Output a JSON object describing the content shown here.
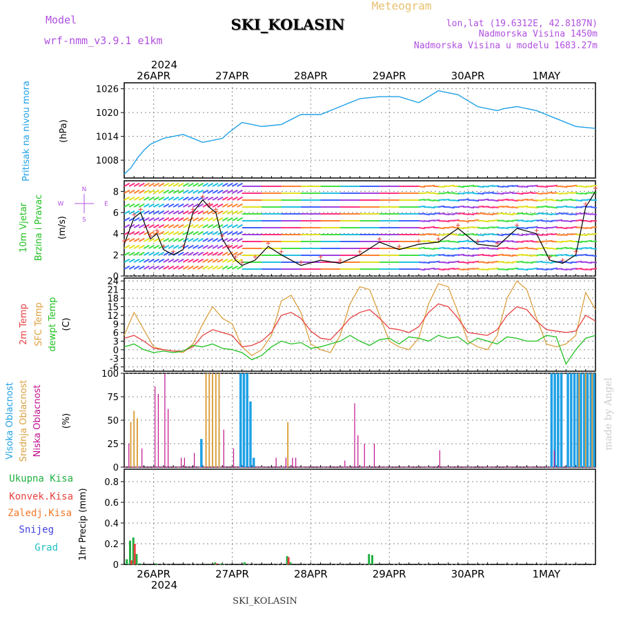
{
  "header": {
    "model_label": "Model",
    "model_value": "wrf-nmm_v3.9.1  e1km",
    "title": "SKI_KOLASIN",
    "meteogram": "Meteogram",
    "lonlat": "lon,lat (19.6312E, 42.8187N)",
    "elev": "Nadmorska Visina 1450m",
    "elev_model": "Nadmorska Visina u modelu 1683.27m",
    "footer_title": "SKI_KOLASIN",
    "made_by": "made by Angel",
    "year": "2024"
  },
  "time_axis": {
    "days": [
      "26APR",
      "27APR",
      "28APR",
      "29APR",
      "30APR",
      "1MAY"
    ],
    "start": "2024-04-25T15:00",
    "end": "2024-05-01T15:00"
  },
  "colors": {
    "pressure": "#1ea0e6",
    "temp2m": "#e84040",
    "sfc": "#dca040",
    "dewpt": "#20c020",
    "high_cloud": "#1ea0e6",
    "mid_cloud": "#dca040",
    "low_cloud": "#c0108c",
    "total_precip": "#20b040",
    "conv_precip": "#e84040",
    "frz": "#f07828",
    "snow": "#4040e0",
    "grad": "#20c0c0",
    "model_label": "#b050e0",
    "lonlat": "#b050e0",
    "meteogram": "#e8c070"
  },
  "chart_data": [
    {
      "type": "line",
      "panel": "pressure",
      "ylabel_lines": [
        "Pritisak na nivou mora",
        "(hPa)"
      ],
      "yticks": [
        1008,
        1014,
        1020,
        1026
      ],
      "ylim": [
        1003.5,
        1027.5
      ],
      "series": [
        {
          "x": [
            0,
            2,
            4,
            6,
            8,
            12,
            18,
            24,
            30,
            32,
            36,
            42,
            48,
            54,
            60,
            66,
            72,
            78,
            84,
            90,
            96,
            102,
            108,
            114,
            116,
            120,
            126,
            132,
            138,
            144
          ],
          "values": [
            1004.5,
            1006,
            1008.5,
            1010.5,
            1012,
            1013.5,
            1014.5,
            1012.5,
            1013.5,
            1015,
            1017.5,
            1016.5,
            1017,
            1019.5,
            1019.5,
            1021.5,
            1023.5,
            1024,
            1024,
            1022.5,
            1025.5,
            1024.5,
            1021.5,
            1020.5,
            1021,
            1021.5,
            1020.5,
            1018.5,
            1016.5,
            1016
          ]
        }
      ]
    },
    {
      "type": "line",
      "panel": "wind",
      "ylabel_lines": [
        "10m Vjetar",
        "Brzina i Pravac",
        "(m/s)"
      ],
      "compass": [
        "N",
        "E",
        "S",
        "W"
      ],
      "yticks": [
        0,
        2,
        4,
        6,
        8
      ],
      "ylim": [
        0,
        9
      ],
      "series": [
        {
          "name": "speed",
          "x": [
            0,
            3,
            5,
            8,
            10,
            12,
            15,
            18,
            21,
            24,
            26,
            28,
            30,
            32,
            34,
            36,
            40,
            44,
            48,
            54,
            60,
            66,
            72,
            78,
            84,
            90,
            96,
            102,
            108,
            114,
            120,
            126,
            130,
            134,
            138,
            141,
            144
          ],
          "values": [
            3,
            5.5,
            6,
            3.5,
            4,
            2.5,
            2,
            2.5,
            6,
            7.2,
            6.5,
            6,
            3.5,
            2.5,
            1.5,
            1,
            1.5,
            2.8,
            2,
            1,
            1.5,
            1.2,
            2,
            3.2,
            2.5,
            3,
            3.2,
            4.5,
            3,
            2.8,
            4.5,
            4,
            1.5,
            1.2,
            2,
            6.5,
            8
          ]
        }
      ]
    },
    {
      "type": "line",
      "panel": "temperature",
      "ylabel_lines": [
        "2m Temp",
        "SFC Temp",
        "dewpt Temp",
        "(C)"
      ],
      "yticks": [
        -6,
        -3,
        0,
        3,
        6,
        9,
        12,
        15,
        18,
        21,
        24
      ],
      "ylim": [
        -7.5,
        25
      ],
      "series": [
        {
          "name": "2m Temp",
          "x": [
            0,
            3,
            6,
            9,
            12,
            15,
            18,
            21,
            24,
            27,
            30,
            33,
            36,
            39,
            42,
            45,
            48,
            51,
            54,
            57,
            60,
            63,
            66,
            69,
            72,
            75,
            78,
            81,
            84,
            87,
            90,
            93,
            96,
            99,
            102,
            105,
            108,
            111,
            114,
            117,
            120,
            123,
            126,
            129,
            132,
            135,
            138,
            141,
            144
          ],
          "values": [
            4,
            5,
            3,
            0.5,
            0,
            -0.5,
            -0.5,
            1,
            5,
            7,
            6,
            5,
            1,
            1.5,
            3,
            6,
            12,
            13,
            11,
            6.5,
            4,
            3.5,
            7,
            11,
            13,
            14,
            11,
            7.5,
            7,
            6,
            8,
            13,
            16,
            15,
            11,
            6,
            5.5,
            5,
            7,
            12,
            15,
            14,
            10,
            7,
            6.5,
            6,
            6.5,
            12,
            10
          ]
        },
        {
          "name": "SFC Temp",
          "x": [
            0,
            3,
            6,
            9,
            12,
            15,
            18,
            21,
            24,
            27,
            30,
            33,
            36,
            39,
            42,
            45,
            48,
            51,
            54,
            57,
            60,
            63,
            66,
            69,
            72,
            75,
            78,
            81,
            84,
            87,
            90,
            93,
            96,
            99,
            102,
            105,
            108,
            111,
            114,
            117,
            120,
            123,
            126,
            129,
            132,
            135,
            138,
            141,
            144
          ],
          "values": [
            5,
            13,
            7,
            1,
            0,
            -0.5,
            -1,
            2,
            9,
            15,
            11,
            9,
            1,
            -2,
            0,
            5,
            17,
            19,
            13,
            2,
            0,
            -1,
            5,
            16,
            22,
            21,
            12,
            3,
            1,
            0,
            4,
            16,
            23,
            22,
            13,
            3,
            1,
            0,
            5,
            18,
            24,
            21,
            11,
            2,
            1,
            2,
            5,
            20,
            14
          ]
        },
        {
          "name": "dewpt Temp",
          "x": [
            0,
            3,
            6,
            9,
            12,
            15,
            18,
            21,
            24,
            27,
            30,
            33,
            36,
            39,
            42,
            45,
            48,
            51,
            54,
            57,
            60,
            63,
            66,
            69,
            72,
            75,
            78,
            81,
            84,
            87,
            90,
            93,
            96,
            99,
            102,
            105,
            108,
            111,
            114,
            117,
            120,
            123,
            126,
            129,
            132,
            135,
            138,
            141,
            144
          ],
          "values": [
            1,
            2,
            0,
            -1,
            -0.5,
            -1,
            -0.5,
            1.5,
            1,
            2,
            0.5,
            0,
            -1,
            -3.5,
            -2,
            1,
            3,
            2,
            2.5,
            0.5,
            1,
            2,
            3,
            5,
            3,
            1.5,
            3.5,
            4,
            2,
            4.5,
            4,
            3,
            5,
            4,
            4.5,
            2,
            4,
            3,
            2,
            4.5,
            4,
            3,
            3,
            5,
            4.5,
            -5,
            0,
            4,
            5
          ]
        }
      ]
    },
    {
      "type": "bar",
      "panel": "clouds",
      "ylabel_lines": [
        "Visoka Oblacnost",
        "Srednja Oblacnost",
        "Niska Oblacnost",
        "(%)"
      ],
      "yticks": [
        0,
        25,
        50,
        75,
        100
      ],
      "ylim": [
        0,
        100
      ],
      "series": [
        {
          "name": "Visoka Oblacnost",
          "x": [
            24,
            36,
            37,
            38,
            39,
            40,
            131,
            132,
            133,
            134,
            136,
            137,
            138,
            139,
            140,
            141,
            142,
            143,
            144
          ],
          "values": [
            30,
            100,
            100,
            100,
            70,
            10,
            100,
            100,
            100,
            100,
            100,
            100,
            100,
            100,
            100,
            100,
            100,
            100,
            100
          ]
        },
        {
          "name": "Srednja Oblacnost",
          "x": [
            2,
            3,
            4,
            25,
            26,
            27,
            28,
            29,
            50,
            139,
            141,
            143
          ],
          "values": [
            48,
            60,
            52,
            100,
            100,
            100,
            100,
            100,
            48,
            100,
            100,
            100
          ]
        },
        {
          "name": "Niska Oblacnost",
          "x": [
            1,
            5,
            9,
            10,
            12,
            13,
            17,
            18,
            21,
            30,
            33,
            46,
            49,
            51,
            52,
            67,
            70,
            71,
            73,
            76,
            96,
            131
          ],
          "values": [
            25,
            20,
            86,
            78,
            100,
            62,
            10,
            10,
            15,
            40,
            20,
            10,
            10,
            10,
            10,
            7,
            68,
            34,
            25,
            25,
            18,
            18
          ]
        }
      ]
    },
    {
      "type": "bar",
      "panel": "precip",
      "ylabel_lines": [
        "1hr Precip (mm)"
      ],
      "legend": [
        "Ukupna  Kisa",
        "Konvek.Kisa",
        "Zaledj.Kisa",
        "Snijeg",
        "Grad"
      ],
      "yticks": [
        0,
        0.2,
        0.4,
        0.6,
        0.8
      ],
      "ylim": [
        0,
        0.92
      ],
      "series": [
        {
          "name": "Ukupna Kisa",
          "x": [
            1,
            2,
            3,
            4,
            5,
            10,
            28,
            30,
            37,
            50,
            51,
            75,
            76
          ],
          "values": [
            0.05,
            0.23,
            0.26,
            0.1,
            0.01,
            0.01,
            0.02,
            0.01,
            0.02,
            0.08,
            0.02,
            0.1,
            0.09
          ]
        },
        {
          "name": "Konvek.Kisa",
          "x": [
            2,
            3,
            28,
            50
          ],
          "values": [
            0.04,
            0.2,
            0.01,
            0.07
          ]
        }
      ]
    }
  ]
}
